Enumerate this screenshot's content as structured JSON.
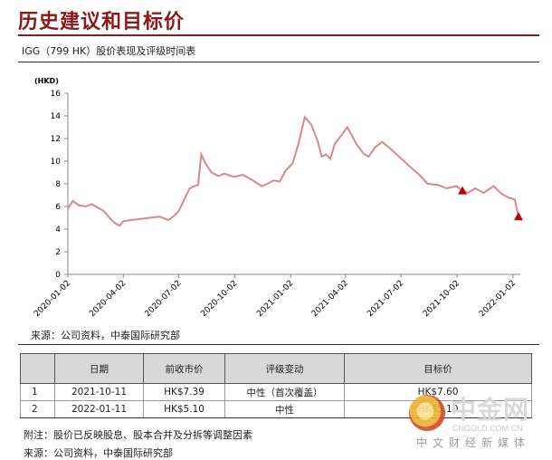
{
  "heading": "历史建议和目标价",
  "subtitle": "IGG（799 HK）股价表现及评级时间表",
  "source_top": "来源：公司资料，中泰国际研究部",
  "table": {
    "headers": [
      "",
      "日期",
      "前收市价",
      "评级变动",
      "目标价"
    ],
    "rows": [
      [
        "1",
        "2021-10-11",
        "HK$7.39",
        "中性（首次覆盖）",
        "HK$7.60"
      ],
      [
        "2",
        "2022-01-11",
        "HK$5.10",
        "中性",
        "HK$5.10"
      ]
    ]
  },
  "note": "附注：股价已反映股息、股本合并及分拆等调整因素",
  "source_bottom": "来源：公司资料，中泰国际研究部",
  "watermark": {
    "big": "中金网",
    "small": "CNGOLD.COM.CN",
    "cn": "中文财经新媒体"
  },
  "chart_data": {
    "type": "line",
    "title": "",
    "ylabel": "(HKD)",
    "xlabel": "",
    "ylim": [
      0,
      16
    ],
    "y_ticks": [
      "0",
      "2",
      "4",
      "6",
      "8",
      "10",
      "12",
      "14",
      "16"
    ],
    "x_ticks": [
      "2020-01-02",
      "2020-04-02",
      "2020-07-02",
      "2020-10-02",
      "2021-01-02",
      "2021-04-02",
      "2021-07-02",
      "2021-10-02",
      "2022-01-02"
    ],
    "line_color": "#d9888a",
    "marker_color": "#c00000",
    "series": [
      {
        "x": [
          "2020-01-02",
          "2020-01-10",
          "2020-01-20",
          "2020-02-01",
          "2020-02-10",
          "2020-02-20",
          "2020-03-01",
          "2020-03-10",
          "2020-03-20",
          "2020-03-27",
          "2020-04-02",
          "2020-04-15",
          "2020-05-01",
          "2020-05-15",
          "2020-06-01",
          "2020-06-15",
          "2020-06-25",
          "2020-07-02",
          "2020-07-10",
          "2020-07-20",
          "2020-07-28",
          "2020-08-03",
          "2020-08-08",
          "2020-08-15",
          "2020-08-25",
          "2020-09-05",
          "2020-09-15",
          "2020-10-01",
          "2020-10-15",
          "2020-11-01",
          "2020-11-15",
          "2020-11-25",
          "2020-12-05",
          "2020-12-15",
          "2020-12-25",
          "2021-01-05",
          "2021-01-15",
          "2021-01-25",
          "2021-02-05",
          "2021-02-15",
          "2021-02-22",
          "2021-03-01",
          "2021-03-08",
          "2021-03-15",
          "2021-03-25",
          "2021-04-05",
          "2021-04-20",
          "2021-05-01",
          "2021-05-10",
          "2021-05-20",
          "2021-06-01",
          "2021-06-15",
          "2021-07-01",
          "2021-07-15",
          "2021-08-01",
          "2021-08-15",
          "2021-09-01",
          "2021-09-15",
          "2021-10-01",
          "2021-10-11",
          "2021-10-20",
          "2021-11-01",
          "2021-11-15",
          "2021-12-01",
          "2021-12-15",
          "2021-12-25",
          "2022-01-05",
          "2022-01-11"
        ],
        "y": [
          5.8,
          6.5,
          6.1,
          6.0,
          6.2,
          5.9,
          5.6,
          5.0,
          4.5,
          4.3,
          4.7,
          4.8,
          4.9,
          5.0,
          5.1,
          4.8,
          5.2,
          5.6,
          6.5,
          7.6,
          7.8,
          7.9,
          10.6,
          9.8,
          9.0,
          8.7,
          8.9,
          8.6,
          8.8,
          8.3,
          7.8,
          8.0,
          8.3,
          8.2,
          9.2,
          9.8,
          11.6,
          13.9,
          13.2,
          11.8,
          10.4,
          10.6,
          10.2,
          11.5,
          12.2,
          13.0,
          11.5,
          10.7,
          10.4,
          11.2,
          11.7,
          11.1,
          10.3,
          9.6,
          8.8,
          8.0,
          7.9,
          7.6,
          7.8,
          7.39,
          7.2,
          7.6,
          7.2,
          7.8,
          7.1,
          6.8,
          6.6,
          5.1
        ]
      }
    ],
    "markers": [
      {
        "x": "2021-10-11",
        "y": 7.39
      },
      {
        "x": "2022-01-11",
        "y": 5.1
      }
    ]
  }
}
